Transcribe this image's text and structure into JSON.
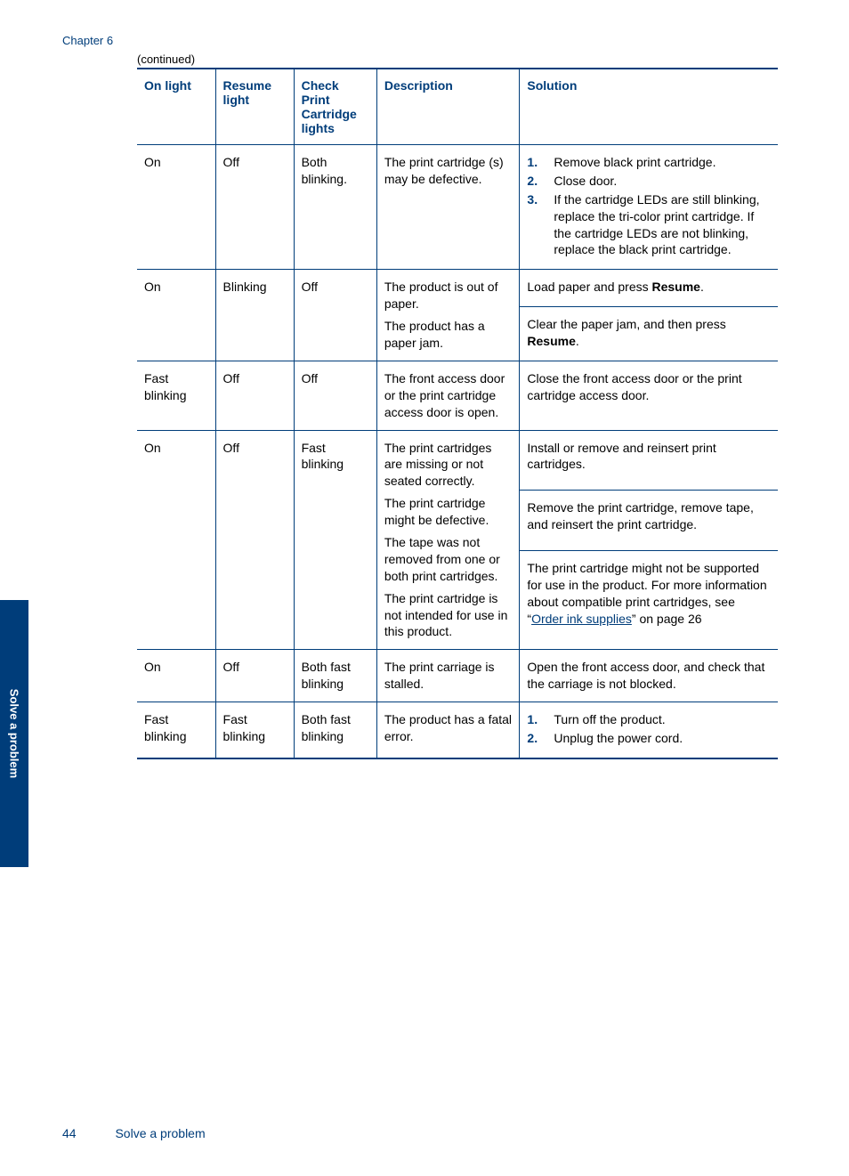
{
  "chapter_label": "Chapter 6",
  "continued_label": "(continued)",
  "side_tab": "Solve a problem",
  "footer": {
    "page_number": "44",
    "section": "Solve a problem"
  },
  "table": {
    "headers": {
      "c1": "On light",
      "c2": "Resume light",
      "c3": "Check Print Cartridge lights",
      "c4": "Description",
      "c5": "Solution"
    },
    "rows": {
      "r1": {
        "c1": "On",
        "c2": "Off",
        "c3": "Both blinking.",
        "c4": "The print cartridge (s) may be defective.",
        "sol_items": {
          "i1": "Remove black print cartridge.",
          "i2": "Close door.",
          "i3": "If the cartridge LEDs are still blinking, replace the tri-color print cartridge. If the cartridge LEDs are not blinking, replace the black print cartridge."
        }
      },
      "r2": {
        "c1": "On",
        "c2": "Blinking",
        "c3": "Off",
        "desc_a": "The product is out of paper.",
        "desc_b": "The product has a paper jam.",
        "sol_a_pre": "Load paper and press ",
        "sol_a_bold": "Resume",
        "sol_a_post": ".",
        "sol_b_pre": "Clear the paper jam, and then press ",
        "sol_b_bold": "Resume",
        "sol_b_post": "."
      },
      "r3": {
        "c1": "Fast blinking",
        "c2": "Off",
        "c3": "Off",
        "c4": "The front access door or the print cartridge access door is open.",
        "c5": "Close the front access door or the print cartridge access door."
      },
      "r4": {
        "c1": "On",
        "c2": "Off",
        "c3": "Fast blinking",
        "desc_a": "The print cartridges are missing or not seated correctly.",
        "desc_b": "The print cartridge might be defective.",
        "desc_c": "The tape was not removed from one or both print cartridges.",
        "desc_d": "The print cartridge is not intended for use in this product.",
        "sol_a": "Install or remove and reinsert print cartridges.",
        "sol_b": "Remove the print cartridge, remove tape, and reinsert the print cartridge.",
        "sol_c_pre": "The print cartridge might not be supported for use in the product. For more information about compatible print cartridges, see “",
        "sol_c_link": "Order ink supplies",
        "sol_c_post": "” on page 26"
      },
      "r5": {
        "c1": "On",
        "c2": "Off",
        "c3": "Both fast blinking",
        "c4": "The print carriage is stalled.",
        "c5": "Open the front access door, and check that the carriage is not blocked."
      },
      "r6": {
        "c1": "Fast blinking",
        "c2": "Fast blinking",
        "c3": "Both fast blinking",
        "c4": "The product has a fatal error.",
        "sol_items": {
          "i1": "Turn off the product.",
          "i2": "Unplug the power cord."
        }
      }
    }
  }
}
